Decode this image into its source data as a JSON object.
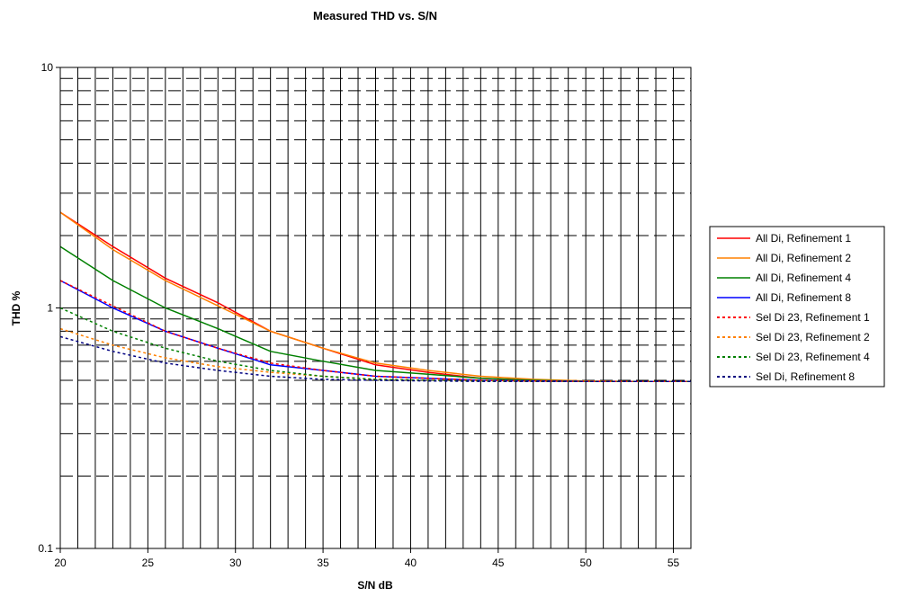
{
  "chart_data": {
    "type": "line",
    "title": "Measured THD vs. S/N",
    "xlabel": "S/N dB",
    "ylabel": "THD %",
    "xlim": [
      20,
      56
    ],
    "ylim": [
      0.1,
      10
    ],
    "y_scale": "log",
    "x_ticks": [
      20,
      25,
      30,
      35,
      40,
      45,
      50,
      55
    ],
    "x_tick_labels": [
      "20",
      "25",
      "30",
      "35",
      "40",
      "45",
      "50",
      "55"
    ],
    "y_ticks": [
      0.1,
      1,
      10
    ],
    "y_tick_labels": [
      "0.1",
      "1",
      "10"
    ],
    "grid": true,
    "legend_position": "right",
    "x": [
      20,
      23,
      26,
      29,
      32,
      35,
      38,
      41,
      44,
      47,
      50,
      53,
      56
    ],
    "series": [
      {
        "name": "All Di, Refinement 1",
        "color": "#ff0000",
        "dash": "solid",
        "values": [
          2.5,
          1.8,
          1.33,
          1.05,
          0.8,
          0.68,
          0.58,
          0.54,
          0.51,
          0.5,
          0.495,
          0.495,
          0.495
        ]
      },
      {
        "name": "All Di, Refinement 2",
        "color": "#ff8000",
        "dash": "solid",
        "values": [
          2.5,
          1.75,
          1.3,
          1.02,
          0.8,
          0.68,
          0.59,
          0.55,
          0.52,
          0.505,
          0.497,
          0.495,
          0.495
        ]
      },
      {
        "name": "All Di, Refinement 4",
        "color": "#008000",
        "dash": "solid",
        "values": [
          1.8,
          1.3,
          1.0,
          0.82,
          0.66,
          0.6,
          0.55,
          0.53,
          0.51,
          0.5,
          0.495,
          0.495,
          0.495
        ]
      },
      {
        "name": "All Di, Refinement 8",
        "color": "#0000ff",
        "dash": "solid",
        "values": [
          1.3,
          1.0,
          0.8,
          0.68,
          0.58,
          0.55,
          0.52,
          0.51,
          0.5,
          0.497,
          0.495,
          0.495,
          0.495
        ]
      },
      {
        "name": "Sel Di 23, Refinement 1",
        "color": "#ff0000",
        "dash": "dotted",
        "values": [
          1.3,
          1.02,
          0.8,
          0.68,
          0.59,
          0.55,
          0.52,
          0.51,
          0.5,
          0.497,
          0.495,
          0.495,
          0.495
        ]
      },
      {
        "name": "Sel Di 23, Refinement 2",
        "color": "#ff8000",
        "dash": "dotted",
        "values": [
          0.82,
          0.7,
          0.62,
          0.57,
          0.54,
          0.52,
          0.505,
          0.5,
          0.497,
          0.495,
          0.495,
          0.495,
          0.495
        ]
      },
      {
        "name": "Sel Di 23, Refinement 4",
        "color": "#008000",
        "dash": "dotted",
        "values": [
          1.0,
          0.8,
          0.68,
          0.6,
          0.55,
          0.52,
          0.505,
          0.5,
          0.497,
          0.495,
          0.495,
          0.495,
          0.495
        ]
      },
      {
        "name": "Sel Di, Refinement 8",
        "color": "#000080",
        "dash": "dotted",
        "values": [
          0.76,
          0.66,
          0.59,
          0.55,
          0.52,
          0.505,
          0.5,
          0.497,
          0.495,
          0.495,
          0.495,
          0.495,
          0.495
        ]
      }
    ]
  }
}
